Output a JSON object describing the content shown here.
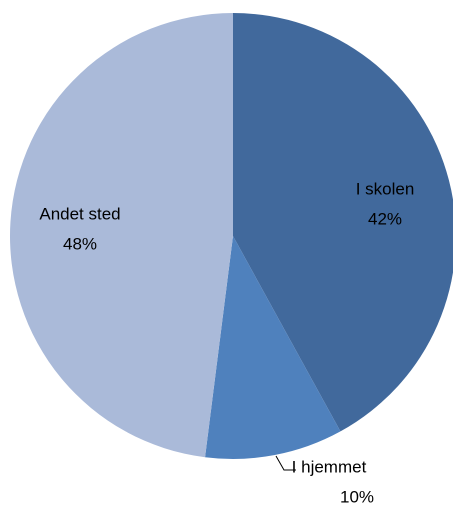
{
  "chart_data": {
    "type": "pie",
    "categories": [
      "I skolen",
      "I hjemmet",
      "Andet sted"
    ],
    "values": [
      42,
      10,
      48
    ],
    "value_labels": [
      "42%",
      "10%",
      "48%"
    ],
    "colors": [
      "#41699c",
      "#4f81bd",
      "#aabad9"
    ]
  }
}
